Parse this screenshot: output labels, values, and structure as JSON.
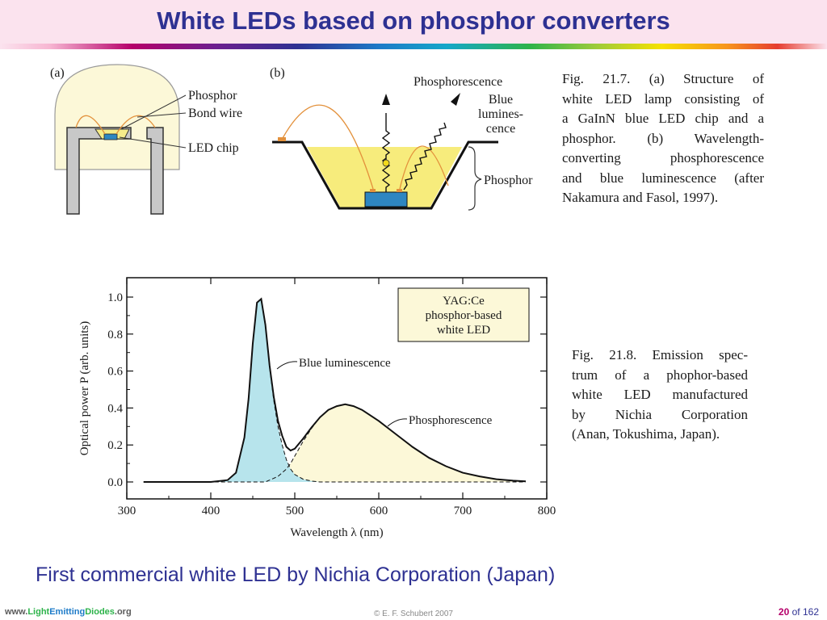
{
  "slide": {
    "title": "White LEDs based on phosphor converters",
    "subtitle": "First commercial white LED by Nichia Corporation (Japan)"
  },
  "figure_21_7": {
    "panel_a_label": "(a)",
    "panel_b_label": "(b)",
    "a_labels": {
      "phosphor": "Phosphor",
      "bond_wire": "Bond wire",
      "led_chip": "LED chip"
    },
    "b_labels": {
      "phosphorescence": "Phosphorescence",
      "blue_l1": "Blue",
      "blue_l2": "lumines-",
      "blue_l3": "cence",
      "phosphor": "Phosphor"
    },
    "caption_lines": [
      "Fig. 21.7. (a) Structure of",
      "white LED lamp consisting of",
      "a GaInN blue LED chip and a",
      "phosphor. (b) Wavelength-",
      "converting phosphorescence",
      "and blue luminescence (after",
      "Nakamura and Fasol, 1997)."
    ]
  },
  "figure_21_8": {
    "caption_lines": [
      "Fig. 21.8. Emission spec-",
      "trum of a phophor-based",
      "white LED manufactured",
      "by Nichia Corporation",
      "(Anan, Tokushima, Japan)."
    ]
  },
  "chart_data": {
    "type": "area",
    "xlabel": "Wavelength λ (nm)",
    "ylabel": "Optical power P (arb. units)",
    "xlim": [
      300,
      800
    ],
    "ylim": [
      0,
      1.1
    ],
    "x_ticks": [
      300,
      400,
      500,
      600,
      700,
      800
    ],
    "y_ticks": [
      "0.0",
      "0.2",
      "0.4",
      "0.6",
      "0.8",
      "1.0"
    ],
    "legend_box_lines": [
      "YAG:Ce",
      "phosphor-based",
      "white LED"
    ],
    "annotations": [
      "Blue luminescence",
      "Phosphorescence"
    ],
    "grid": false,
    "x": [
      320,
      400,
      420,
      430,
      440,
      445,
      450,
      455,
      460,
      465,
      470,
      475,
      480,
      485,
      490,
      495,
      500,
      510,
      520,
      530,
      540,
      550,
      560,
      570,
      580,
      600,
      620,
      640,
      660,
      680,
      700,
      720,
      740,
      760,
      775
    ],
    "series": [
      {
        "name": "Blue luminescence",
        "values": [
          0,
          0,
          0.01,
          0.05,
          0.24,
          0.45,
          0.75,
          0.97,
          0.99,
          0.85,
          0.62,
          0.44,
          0.3,
          0.2,
          0.12,
          0.07,
          0.04,
          0.015,
          0.005,
          0,
          0,
          0,
          0,
          0,
          0,
          0,
          0,
          0,
          0,
          0,
          0,
          0,
          0,
          0,
          0
        ]
      },
      {
        "name": "Phosphorescence",
        "values": [
          0,
          0,
          0,
          0,
          0,
          0,
          0,
          0,
          0,
          0,
          0.01,
          0.02,
          0.03,
          0.05,
          0.07,
          0.1,
          0.14,
          0.22,
          0.29,
          0.35,
          0.39,
          0.41,
          0.42,
          0.41,
          0.39,
          0.33,
          0.26,
          0.19,
          0.13,
          0.085,
          0.05,
          0.03,
          0.015,
          0.007,
          0.003
        ]
      }
    ],
    "colors": {
      "blue_fill": "#b7e4ec",
      "phosphor_fill": "#fcf8d8",
      "legend_fill": "#fcf8d8",
      "curve": "#111111"
    }
  },
  "footer": {
    "url_prefix": "www.",
    "url_light": "Light",
    "url_emitting": "Emitting",
    "url_diodes": "Diodes",
    "url_suffix": ".org",
    "copyright": "© E. F. Schubert 2007",
    "page_current": "20",
    "page_of": "of 162"
  }
}
